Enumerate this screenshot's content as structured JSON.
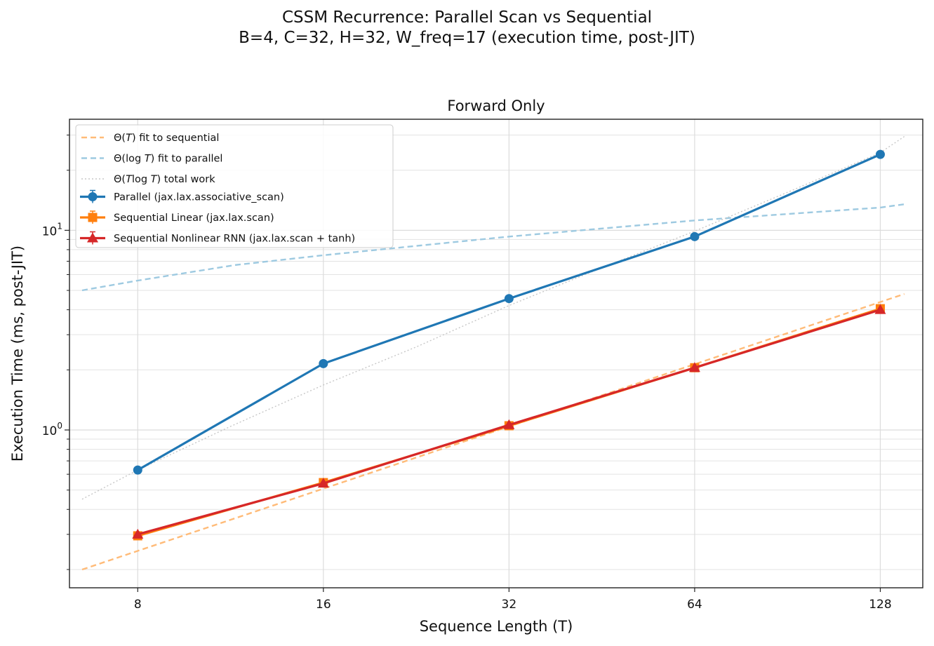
{
  "suptitle_line1": "CSSM Recurrence: Parallel Scan vs Sequential",
  "suptitle_line2": "B=4, C=32, H=32, W_freq=17  (execution time, post-JIT)",
  "chart_data": {
    "type": "line",
    "title": "Forward Only",
    "xlabel": "Sequence Length (T)",
    "ylabel": "Execution Time (ms, post-JIT)",
    "xscale": "log2",
    "yscale": "log10",
    "xlim": [
      6.2,
      150
    ],
    "ylim": [
      0.162,
      36
    ],
    "x_ticks": [
      8,
      16,
      32,
      64,
      128
    ],
    "x_tick_labels": [
      "8",
      "16",
      "32",
      "64",
      "128"
    ],
    "y_major_ticks": [
      1,
      10
    ],
    "y_tick_labels": [
      "10",
      "10"
    ],
    "y_tick_exponents": [
      "0",
      "1"
    ],
    "y_minor_ticks": [
      0.2,
      0.3,
      0.4,
      0.5,
      0.6,
      0.7,
      0.8,
      0.9,
      2,
      3,
      4,
      5,
      6,
      7,
      8,
      9,
      20,
      30
    ],
    "grid": true,
    "legend_position": "upper-left",
    "series": [
      {
        "name": "Parallel (jax.lax.associative_scan)",
        "color": "#1f77b4",
        "marker": "circle",
        "x": [
          8,
          16,
          32,
          64,
          128
        ],
        "values": [
          0.63,
          2.15,
          4.55,
          9.3,
          24.0
        ]
      },
      {
        "name": "Sequential Linear (jax.lax.scan)",
        "color": "#ff7f0e",
        "marker": "square",
        "x": [
          8,
          16,
          32,
          64,
          128
        ],
        "values": [
          0.295,
          0.545,
          1.05,
          2.05,
          4.05
        ]
      },
      {
        "name": "Sequential Nonlinear RNN (jax.lax.scan + tanh)",
        "color": "#d62728",
        "marker": "triangle",
        "x": [
          8,
          16,
          32,
          64,
          128
        ],
        "values": [
          0.3,
          0.54,
          1.06,
          2.05,
          4.0
        ]
      }
    ],
    "fits": [
      {
        "name": "Θ(",
        "italic": "T",
        "suffix": ") fit to sequential",
        "color": "#ffbb78",
        "dash": "dashed",
        "x": [
          6.5,
          140
        ],
        "values": [
          0.2,
          4.8
        ]
      },
      {
        "name": "Θ(log ",
        "italic": "T",
        "suffix": ") fit to parallel",
        "color": "#9ecae1",
        "dash": "dashed",
        "x": [
          6.5,
          8,
          11.5,
          16,
          32,
          64,
          128,
          140
        ],
        "values": [
          5.0,
          5.6,
          6.7,
          7.5,
          9.3,
          11.2,
          13.0,
          13.5
        ]
      },
      {
        "name": "Θ(",
        "italic": "T",
        "mid": "log ",
        "italic2": "T",
        "suffix": ") total work",
        "color": "#c7c7c7",
        "dash": "dotted",
        "x": [
          6.5,
          8,
          11.3,
          16,
          22.6,
          32,
          45.3,
          64,
          90.5,
          128,
          140
        ],
        "values": [
          0.45,
          0.63,
          1.04,
          1.68,
          2.6,
          4.2,
          6.5,
          9.9,
          15.5,
          24.5,
          29.5
        ]
      }
    ]
  }
}
